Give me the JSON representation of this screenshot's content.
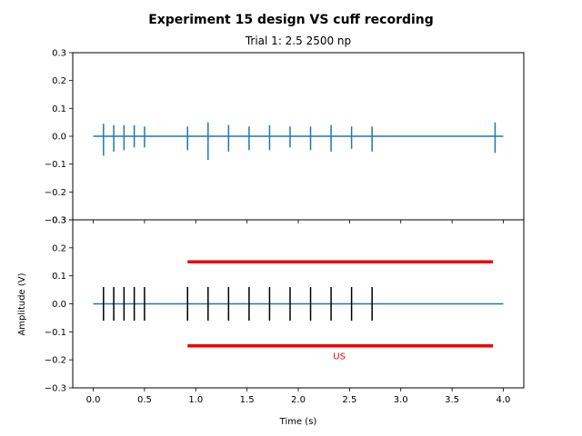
{
  "chart_data": {
    "type": "line",
    "title": "Experiment 15 design VS cuff recording",
    "subtitle": "Trial 1: 2.5 2500 np",
    "xlabel": "Time (s)",
    "ylabel": "Amplitude (V)",
    "xlim": [
      -0.2,
      4.2
    ],
    "ylim": [
      -0.3,
      0.3
    ],
    "xticks": [
      0.0,
      0.5,
      1.0,
      1.5,
      2.0,
      2.5,
      3.0,
      3.5,
      4.0
    ],
    "xtick_labels": [
      "0.0",
      "0.5",
      "1.0",
      "1.5",
      "2.0",
      "2.5",
      "3.0",
      "3.5",
      "4.0"
    ],
    "yticks": [
      0.3,
      0.2,
      0.1,
      0.0,
      -0.1,
      -0.2,
      -0.3
    ],
    "ytick_labels": [
      "0.3",
      "0.2",
      "0.1",
      "0.0",
      "−0.1",
      "−0.2",
      "−0.3"
    ],
    "line_color": "#1f77b4",
    "top_panel": {
      "baseline": [
        0.0,
        4.0
      ],
      "spikes": [
        {
          "t": 0.1,
          "up": 0.045,
          "down": -0.07
        },
        {
          "t": 0.2,
          "up": 0.04,
          "down": -0.055
        },
        {
          "t": 0.3,
          "up": 0.04,
          "down": -0.05
        },
        {
          "t": 0.4,
          "up": 0.04,
          "down": -0.04
        },
        {
          "t": 0.5,
          "up": 0.035,
          "down": -0.04
        },
        {
          "t": 0.92,
          "up": 0.035,
          "down": -0.05
        },
        {
          "t": 1.12,
          "up": 0.05,
          "down": -0.085
        },
        {
          "t": 1.32,
          "up": 0.04,
          "down": -0.055
        },
        {
          "t": 1.52,
          "up": 0.035,
          "down": -0.05
        },
        {
          "t": 1.72,
          "up": 0.04,
          "down": -0.05
        },
        {
          "t": 1.92,
          "up": 0.035,
          "down": -0.04
        },
        {
          "t": 2.12,
          "up": 0.035,
          "down": -0.05
        },
        {
          "t": 2.32,
          "up": 0.04,
          "down": -0.055
        },
        {
          "t": 2.52,
          "up": 0.035,
          "down": -0.045
        },
        {
          "t": 2.72,
          "up": 0.035,
          "down": -0.055
        },
        {
          "t": 3.92,
          "up": 0.05,
          "down": -0.06
        }
      ]
    },
    "bottom_panel": {
      "baseline": [
        0.0,
        4.0
      ],
      "pulses": [
        0.1,
        0.2,
        0.3,
        0.4,
        0.5,
        0.92,
        1.12,
        1.32,
        1.52,
        1.72,
        1.92,
        2.12,
        2.32,
        2.52,
        2.72
      ],
      "pulse_half_height": 0.06,
      "pulse_color": "#000000",
      "us_bars": {
        "x_start": 0.92,
        "x_end": 3.9,
        "y_top": 0.15,
        "y_bottom": -0.15,
        "color": "#ee0000"
      },
      "annotation": {
        "text": "US",
        "x": 2.4,
        "y": -0.185,
        "color": "#ee0000"
      }
    }
  }
}
